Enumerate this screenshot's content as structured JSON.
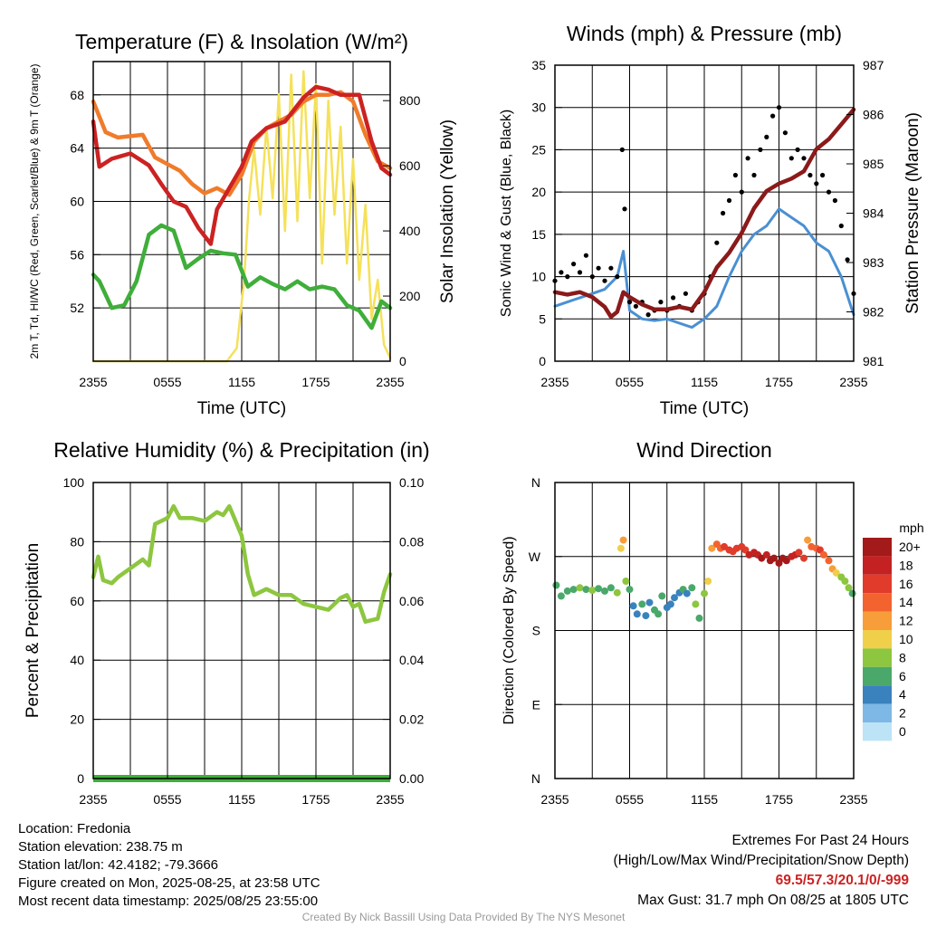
{
  "chart_data": [
    {
      "type": "line",
      "title": "Temperature (F) & Insolation (W/m²)",
      "xlabel": "Time (UTC)",
      "ylabel": "2m T, Td, HI/WC (Red, Green, Scarlet/Blue) & 9m T (Orange)",
      "y2label": "Solar Insolation (Yellow)",
      "x_ticks": [
        "2355",
        "0555",
        "1155",
        "1755",
        "2355"
      ],
      "y_ticks": [
        "52",
        "56",
        "60",
        "64",
        "68"
      ],
      "y2_ticks": [
        "0",
        "200",
        "400",
        "600",
        "800"
      ],
      "ylim": [
        48,
        70.5
      ],
      "y2lim": [
        0,
        920
      ],
      "xlim": [
        0,
        24
      ],
      "grid": true,
      "series": [
        {
          "name": "2m T",
          "color": "#cc2222",
          "axis": "left",
          "x": [
            0,
            0.5,
            1.5,
            3,
            4.5,
            5.5,
            6.5,
            7.5,
            8.5,
            9.5,
            10,
            11,
            12,
            12.8,
            14,
            15.5,
            17,
            18,
            19,
            20,
            21.5,
            22.5,
            23.3,
            24
          ],
          "values": [
            66,
            62.6,
            63.2,
            63.6,
            62.7,
            61.3,
            60,
            59.6,
            58,
            56.8,
            59.4,
            61,
            62.6,
            64.5,
            65.5,
            66,
            67.8,
            68.6,
            68.4,
            68,
            68,
            64.5,
            62.5,
            62
          ]
        },
        {
          "name": "9m T",
          "color": "#f07b2b",
          "axis": "left",
          "x": [
            0,
            1,
            2,
            3,
            4,
            5,
            6,
            7,
            8,
            9,
            10,
            11,
            12,
            13,
            14,
            15,
            16,
            17,
            18,
            19,
            20,
            21,
            22,
            23,
            24
          ],
          "values": [
            67.5,
            65.2,
            64.8,
            64.9,
            65,
            63.3,
            62.8,
            62.3,
            61.3,
            60.6,
            61,
            60.5,
            62,
            64.5,
            65.5,
            66,
            66.5,
            67.5,
            68,
            68,
            68.2,
            67.5,
            65,
            63,
            62.5
          ]
        },
        {
          "name": "Td",
          "color": "#3fae3a",
          "axis": "left",
          "x": [
            0,
            0.5,
            1.5,
            2.5,
            3.5,
            4.5,
            5.5,
            6.5,
            7.5,
            8.5,
            9.5,
            10.5,
            11.5,
            12.5,
            13.5,
            14.5,
            15.5,
            16.5,
            17.5,
            18.5,
            19.5,
            20.5,
            21.5,
            22.5,
            23.3,
            24
          ],
          "values": [
            54.5,
            54,
            52,
            52.2,
            54,
            57.5,
            58.2,
            57.8,
            55,
            55.7,
            56.3,
            56.1,
            56,
            53.6,
            54.3,
            53.8,
            53.4,
            54,
            53.4,
            53.6,
            53.4,
            52.2,
            51.8,
            50.5,
            52.5,
            52
          ]
        },
        {
          "name": "Solar Insolation",
          "color": "#f5e15a",
          "axis": "right",
          "x": [
            0,
            10.8,
            11.6,
            12.2,
            12.6,
            13,
            13.5,
            14,
            14.5,
            15,
            15.5,
            16,
            16.5,
            17,
            17.5,
            18,
            18.5,
            19,
            19.5,
            20,
            20.5,
            21,
            21.5,
            22,
            22.5,
            23,
            23.5,
            24
          ],
          "values": [
            0,
            0,
            40,
            250,
            500,
            650,
            450,
            720,
            500,
            820,
            400,
            880,
            430,
            890,
            500,
            850,
            300,
            800,
            450,
            720,
            300,
            620,
            250,
            480,
            130,
            250,
            50,
            10
          ]
        }
      ]
    },
    {
      "type": "line",
      "title": "Winds (mph) & Pressure (mb)",
      "xlabel": "Time (UTC)",
      "ylabel": "Sonic Wind & Gust (Blue, Black)",
      "y2label": "Station Pressure (Maroon)",
      "x_ticks": [
        "2355",
        "0555",
        "1155",
        "1755",
        "2355"
      ],
      "y_ticks": [
        "0",
        "5",
        "10",
        "15",
        "20",
        "25",
        "30",
        "35"
      ],
      "y2_ticks": [
        "981",
        "982",
        "983",
        "984",
        "985",
        "986",
        "987"
      ],
      "ylim": [
        0,
        35
      ],
      "y2lim": [
        981,
        987
      ],
      "xlim": [
        0,
        24
      ],
      "grid": true,
      "series": [
        {
          "name": "Sonic Wind",
          "color": "#4a90d2",
          "axis": "left",
          "x": [
            0,
            1,
            2,
            3,
            4,
            5,
            5.5,
            6,
            7,
            8,
            9,
            10,
            11,
            12,
            13,
            14,
            15,
            16,
            17,
            18,
            19,
            20,
            21,
            22,
            23,
            24
          ],
          "values": [
            6.5,
            7,
            7.5,
            8,
            8.5,
            10,
            13,
            6,
            5,
            4.8,
            5,
            4.5,
            4,
            5,
            6.5,
            10,
            13,
            15,
            16,
            18,
            17,
            16,
            14,
            13,
            10,
            5.5
          ]
        },
        {
          "name": "Gust",
          "color": "#000000",
          "axis": "left",
          "style": "points",
          "x": [
            0,
            0.5,
            1,
            1.5,
            2,
            2.5,
            3,
            3.5,
            4,
            4.5,
            5,
            5.4,
            5.6,
            6,
            6.5,
            7,
            7.5,
            8,
            8.5,
            9,
            9.5,
            10,
            10.5,
            11,
            11.5,
            12,
            12.5,
            13,
            13.5,
            14,
            14.5,
            15,
            15.5,
            16,
            16.5,
            17,
            17.5,
            18,
            18.5,
            19,
            19.5,
            20,
            20.5,
            21,
            21.5,
            22,
            22.5,
            23,
            23.5,
            24
          ],
          "values": [
            9.5,
            10.5,
            10,
            11.5,
            10.5,
            12.5,
            10,
            11,
            9.5,
            11,
            10,
            25,
            18,
            7,
            6.5,
            7,
            5.5,
            6,
            7,
            6,
            7.5,
            6.5,
            8,
            6,
            7,
            8,
            10,
            14,
            17.5,
            19,
            22,
            20,
            24,
            22,
            25,
            26.5,
            29,
            30,
            27,
            24,
            25,
            24,
            22,
            21,
            22,
            20,
            19,
            16,
            12,
            8
          ]
        },
        {
          "name": "Station Pressure",
          "color": "#8b1a1a",
          "axis": "right",
          "x": [
            0,
            1,
            2,
            3,
            4,
            4.5,
            5,
            5.5,
            6,
            7,
            8,
            9,
            10,
            11,
            12,
            13,
            14,
            15,
            16,
            17,
            18,
            19,
            20,
            21,
            22,
            23,
            24
          ],
          "values": [
            982.4,
            982.35,
            982.4,
            982.3,
            982.1,
            981.9,
            982,
            982.4,
            982.3,
            982.15,
            982.05,
            982.05,
            982.1,
            982.05,
            982.4,
            982.9,
            983.2,
            983.6,
            984.1,
            984.45,
            984.6,
            984.7,
            984.85,
            985.3,
            985.5,
            985.8,
            986.1
          ]
        }
      ]
    },
    {
      "type": "line",
      "title": "Relative Humidity (%) & Precipitation (in)",
      "xlabel": "",
      "ylabel": "Percent & Precipitation",
      "x_ticks": [
        "2355",
        "0555",
        "1155",
        "1755",
        "2355"
      ],
      "y_ticks": [
        "0",
        "20",
        "40",
        "60",
        "80",
        "100"
      ],
      "y2_ticks": [
        "0.00",
        "0.02",
        "0.04",
        "0.06",
        "0.08",
        "0.10"
      ],
      "ylim": [
        0,
        100
      ],
      "y2lim": [
        0,
        0.1
      ],
      "xlim": [
        0,
        24
      ],
      "grid": true,
      "series": [
        {
          "name": "Relative Humidity",
          "color": "#8dc63f",
          "axis": "left",
          "x": [
            0,
            0.4,
            0.8,
            1.5,
            2,
            3,
            4,
            4.5,
            5,
            5.5,
            6,
            6.5,
            7,
            8,
            9,
            10,
            10.5,
            11,
            11.5,
            12,
            12.5,
            13,
            14,
            15,
            16,
            17,
            18,
            19,
            20,
            20.5,
            21,
            21.5,
            22,
            23,
            23.5,
            24
          ],
          "values": [
            68,
            75,
            67,
            66,
            68,
            71,
            74,
            72,
            86,
            87,
            88,
            92,
            88,
            88,
            87,
            90,
            89,
            92,
            87,
            82,
            69,
            62,
            64,
            62,
            62,
            59,
            58,
            57,
            61,
            62,
            58,
            59,
            53,
            54,
            63,
            69
          ]
        },
        {
          "name": "Precipitation",
          "color": "#3fae3a",
          "axis": "right",
          "x": [
            0,
            24
          ],
          "values": [
            0,
            0
          ]
        }
      ]
    },
    {
      "type": "scatter",
      "title": "Wind Direction",
      "ylabel": "Direction (Colored By Speed)",
      "x_ticks": [
        "2355",
        "0555",
        "1155",
        "1755",
        "2355"
      ],
      "y_ticks": [
        "N",
        "E",
        "S",
        "W",
        "N"
      ],
      "ylim": [
        0,
        360
      ],
      "xlim": [
        0,
        24
      ],
      "grid": true,
      "legend_title": "mph",
      "legend_labels": [
        "20+",
        "18",
        "16",
        "14",
        "12",
        "10",
        "8",
        "6",
        "4",
        "2",
        "0"
      ],
      "legend_colors": [
        "#a31a1a",
        "#c42222",
        "#e03b2b",
        "#f2632f",
        "#f79d3a",
        "#f0cf4a",
        "#8dc63f",
        "#4aa86a",
        "#3a82be",
        "#7db8e6",
        "#bde3f6"
      ],
      "legend_position": "right",
      "points": {
        "x": [
          0.1,
          0.5,
          1,
          1.5,
          2,
          2.5,
          3,
          3.5,
          4,
          4.5,
          5,
          5.3,
          5.5,
          5.7,
          6,
          6.3,
          6.6,
          7,
          7.3,
          7.6,
          8,
          8.3,
          8.6,
          9,
          9.3,
          9.6,
          10,
          10.3,
          10.6,
          11,
          11.3,
          11.6,
          12,
          12.3,
          12.6,
          13,
          13.3,
          13.6,
          14,
          14.3,
          14.6,
          15,
          15.3,
          15.6,
          16,
          16.3,
          16.6,
          17,
          17.3,
          17.6,
          18,
          18.3,
          18.6,
          19,
          19.3,
          19.6,
          20,
          20.3,
          20.6,
          21,
          21.3,
          21.6,
          22,
          22.3,
          22.6,
          23,
          23.3,
          23.6,
          23.9
        ],
        "direction": [
          235,
          222,
          228,
          230,
          232,
          230,
          229,
          231,
          228,
          232,
          226,
          280,
          290,
          240,
          230,
          210,
          200,
          212,
          198,
          214,
          205,
          200,
          222,
          208,
          212,
          220,
          226,
          230,
          225,
          232,
          212,
          195,
          225,
          240,
          280,
          285,
          280,
          282,
          278,
          276,
          280,
          282,
          278,
          272,
          275,
          272,
          268,
          272,
          265,
          268,
          262,
          268,
          265,
          270,
          272,
          275,
          268,
          290,
          282,
          280,
          278,
          272,
          265,
          255,
          250,
          245,
          240,
          232,
          225
        ],
        "speed": [
          6,
          6,
          6,
          6,
          7,
          6,
          7,
          6,
          6,
          6,
          7,
          10,
          12,
          8,
          5,
          4,
          4,
          5,
          4,
          4,
          5,
          5,
          6,
          4,
          4,
          3,
          3,
          5,
          4,
          6,
          7,
          6,
          7,
          9,
          12,
          14,
          14,
          15,
          15,
          15,
          16,
          16,
          16,
          17,
          18,
          18,
          19,
          18,
          20,
          19,
          20,
          20,
          19,
          18,
          17,
          16,
          15,
          12,
          13,
          14,
          15,
          14,
          13,
          12,
          10,
          8,
          8,
          7,
          6
        ]
      }
    }
  ],
  "info": {
    "location": "Location: Fredonia",
    "elevation": "Station elevation: 238.75 m",
    "latlon": "Station lat/lon: 42.4182; -79.3666",
    "created": "Figure created on Mon, 2025-08-25, at 23:58 UTC",
    "recent": "Most recent data timestamp: 2025/08/25 23:55:00"
  },
  "extremes": {
    "title": "Extremes For Past 24 Hours",
    "subtitle": "(High/Low/Max Wind/Precipitation/Snow Depth)",
    "values": "69.5/57.3/20.1/0/-999",
    "max_gust": "Max Gust: 31.7 mph On 08/25 at 1805 UTC"
  },
  "credit": "Created By Nick Bassill Using Data Provided By The NYS Mesonet"
}
